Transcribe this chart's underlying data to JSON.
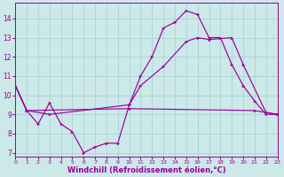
{
  "background_color": "#cce8e8",
  "grid_color": "#aad4d4",
  "line_color": "#990099",
  "xlabel": "Windchill (Refroidissement éolien,°C)",
  "xlim": [
    0,
    23
  ],
  "ylim": [
    6.8,
    14.8
  ],
  "yticks": [
    7,
    8,
    9,
    10,
    11,
    12,
    13,
    14
  ],
  "xticks": [
    0,
    1,
    2,
    3,
    4,
    5,
    6,
    7,
    8,
    9,
    10,
    11,
    12,
    13,
    14,
    15,
    16,
    17,
    18,
    19,
    20,
    21,
    22,
    23
  ],
  "series": [
    {
      "x": [
        0,
        1,
        2,
        3,
        4,
        5,
        6,
        7,
        8,
        9,
        10,
        11,
        12,
        13,
        14,
        15,
        16,
        17,
        18,
        19,
        20,
        21,
        22,
        23
      ],
      "y": [
        10.5,
        9.2,
        8.5,
        9.6,
        8.5,
        8.1,
        7.0,
        7.3,
        7.5,
        7.5,
        9.5,
        11.0,
        12.0,
        13.5,
        13.8,
        14.4,
        14.2,
        13.0,
        13.0,
        11.6,
        10.5,
        9.7,
        9.0,
        9.0
      ]
    },
    {
      "x": [
        0,
        1,
        3,
        10,
        11,
        13,
        15,
        16,
        17,
        19,
        20,
        22,
        23
      ],
      "y": [
        10.5,
        9.2,
        9.0,
        9.5,
        10.5,
        11.5,
        12.8,
        13.0,
        12.9,
        13.0,
        11.6,
        9.1,
        9.0
      ]
    },
    {
      "x": [
        0,
        1,
        10,
        21,
        23
      ],
      "y": [
        10.5,
        9.2,
        9.3,
        9.2,
        9.0
      ]
    }
  ]
}
